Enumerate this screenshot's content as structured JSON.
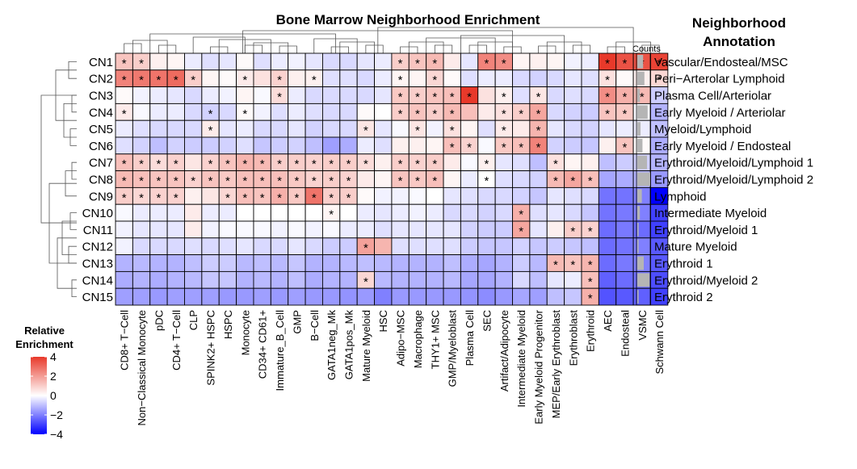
{
  "chart_data": {
    "type": "heatmap",
    "title": "Bone Marrow Neighborhood Enrichment",
    "annotation_title": [
      "Neighborhood",
      "Annotation"
    ],
    "counts_label": "Counts",
    "legend": {
      "title": [
        "Relative",
        "Enrichment"
      ],
      "ticks": [
        "4",
        "2",
        "0",
        "−2",
        "−4"
      ],
      "range": [
        -4,
        4
      ],
      "colors": {
        "low": "#0000ff",
        "mid": "#ffffff",
        "high": "#e8392a"
      }
    },
    "rows": [
      "CN1",
      "CN2",
      "CN3",
      "CN4",
      "CN5",
      "CN6",
      "CN7",
      "CN8",
      "CN9",
      "CN10",
      "CN11",
      "CN12",
      "CN13",
      "CN14",
      "CN15"
    ],
    "annotations": [
      "Vascular/Endosteal/MSC",
      "Peri−Arterolar Lymphoid",
      "Plasma Cell/Arteriolar",
      "Early Myeloid / Arteriolar",
      "Myeloid/Lymphoid",
      "Early Myeloid / Endosteal",
      "Erythroid/Myeloid/Lymphoid 1",
      "Erythroid/Myeloid/Lymphoid 2",
      "Lymphoid",
      "Intermediate Myeloid",
      "Erythroid/Myeloid 1",
      "Mature Myeloid",
      "Erythroid 1",
      "Erythroid/Myeloid 2",
      "Erythroid 2"
    ],
    "counts": [
      0.45,
      0.55,
      0.2,
      0.8,
      0.25,
      0.4,
      0.75,
      1.0,
      0.35,
      0.2,
      0.1,
      0.1,
      0.5,
      0.95,
      0.1
    ],
    "columns": [
      "CD8+ T−Cell",
      "Non−Classical Monocyte",
      "pDC",
      "CD4+ T−Cell",
      "CLP",
      "SPINK2+ HSPC",
      "HSPC",
      "Monocyte",
      "CD34+ CD61+",
      "Immature_B_Cell",
      "GMP",
      "B−Cell",
      "GATA1neg_Mk",
      "GATA1pos_Mk",
      "Mature Myeloid",
      "HSC",
      "Adipo−MSC",
      "Macrophage",
      "THY1+ MSC",
      "GMP/Myeloblast",
      "Plasma Cell",
      "SEC",
      "Artifact/Adipocyte",
      "Intermediate Myeloid",
      "Early Myeloid Progenitor",
      "MEP/Early Erythroblast",
      "Erythroblast",
      "Erythroid",
      "AEC",
      "Endosteal",
      "VSMC",
      "Schwann Cell"
    ],
    "values": [
      [
        1.2,
        1.0,
        0.3,
        0.2,
        -0.3,
        -0.5,
        -0.4,
        0.1,
        -0.5,
        -0.3,
        -0.2,
        -0.4,
        -0.6,
        -0.6,
        -0.4,
        -0.3,
        1.0,
        1.2,
        1.4,
        0.4,
        -0.4,
        2.5,
        2.3,
        0.2,
        0.3,
        0.2,
        -0.2,
        -0.3,
        4.0,
        3.5,
        3.5,
        3.8
      ],
      [
        2.5,
        2.7,
        2.8,
        3.0,
        1.0,
        0.2,
        0.1,
        0.4,
        0.6,
        0.9,
        0.3,
        0.3,
        -0.5,
        -0.5,
        -0.6,
        -0.3,
        0.2,
        0.2,
        0.8,
        0.1,
        -0.5,
        -0.3,
        -0.3,
        -0.6,
        -0.7,
        -0.6,
        -0.4,
        -0.5,
        0.6,
        0.1,
        0.3,
        0.8
      ],
      [
        0.1,
        -0.2,
        -0.3,
        -0.4,
        -0.6,
        -0.3,
        -0.2,
        0.2,
        -0.1,
        0.7,
        -0.3,
        -0.6,
        -0.6,
        -0.6,
        -0.6,
        -0.4,
        1.1,
        1.0,
        1.2,
        1.3,
        4.0,
        0.6,
        0.3,
        -0.5,
        0.5,
        -0.6,
        -0.5,
        -0.6,
        2.3,
        1.6,
        1.4,
        -0.8
      ],
      [
        0.4,
        -0.1,
        -0.3,
        -0.3,
        -0.6,
        -0.7,
        -0.6,
        0.1,
        -0.2,
        -0.5,
        -0.3,
        -0.5,
        -0.6,
        -0.6,
        0.1,
        0.0,
        1.0,
        1.2,
        1.0,
        1.4,
        1.3,
        0.4,
        0.6,
        1.0,
        1.8,
        -0.6,
        -0.7,
        -0.8,
        1.2,
        1.1,
        -0.1,
        -1.2
      ],
      [
        -0.3,
        -0.5,
        -0.6,
        -0.6,
        -0.6,
        0.4,
        -0.4,
        -0.3,
        -0.6,
        -0.6,
        -0.4,
        -0.7,
        -0.6,
        -0.6,
        0.5,
        -0.4,
        -0.1,
        0.5,
        -0.2,
        0.6,
        0.2,
        -0.5,
        0.4,
        0.4,
        1.5,
        -0.4,
        -0.6,
        -0.7,
        -0.4,
        -0.3,
        -0.3,
        -1.0
      ],
      [
        -0.5,
        -0.7,
        -1.0,
        -0.7,
        -0.8,
        -0.8,
        -0.7,
        -0.5,
        -0.9,
        -0.8,
        -0.7,
        -1.0,
        -1.5,
        -1.3,
        -0.3,
        -0.5,
        0.3,
        0.3,
        0.2,
        1.3,
        0.9,
        -0.1,
        1.1,
        1.3,
        2.5,
        -0.7,
        -0.8,
        -0.9,
        0.3,
        1.2,
        0.1,
        -1.3
      ],
      [
        1.3,
        1.0,
        0.7,
        0.9,
        0.5,
        0.9,
        1.2,
        1.5,
        1.4,
        1.0,
        1.0,
        0.9,
        1.0,
        1.0,
        0.7,
        0.3,
        1.0,
        0.9,
        1.0,
        0.4,
        -0.1,
        0.3,
        -0.4,
        -0.5,
        -1.0,
        0.6,
        0.2,
        0.3,
        -1.0,
        -0.8,
        -0.7,
        -1.2
      ],
      [
        1.4,
        1.3,
        1.2,
        1.2,
        0.9,
        1.2,
        1.1,
        1.3,
        1.3,
        1.3,
        1.1,
        0.9,
        1.0,
        0.9,
        0.4,
        0.2,
        1.2,
        1.1,
        1.3,
        0.2,
        -0.3,
        0.0,
        -0.5,
        -0.6,
        -0.7,
        1.4,
        1.8,
        1.3,
        -1.4,
        -1.3,
        -1.2,
        -1.6
      ],
      [
        1.0,
        0.8,
        0.9,
        0.9,
        0.3,
        0.5,
        0.8,
        1.3,
        1.2,
        1.6,
        1.1,
        2.8,
        1.0,
        1.0,
        0.1,
        -0.2,
        -0.2,
        -0.1,
        0.0,
        -0.4,
        -0.5,
        -0.6,
        -0.6,
        -0.7,
        -0.9,
        -0.4,
        -0.5,
        -0.6,
        -2.2,
        -2.2,
        -2.0,
        -4.0
      ],
      [
        -0.1,
        -0.3,
        -0.3,
        -0.3,
        0.4,
        -0.3,
        -0.3,
        0.0,
        0.0,
        0.0,
        0.0,
        0.0,
        0.2,
        0.0,
        -0.3,
        -0.4,
        -0.3,
        -0.2,
        -0.3,
        -0.6,
        -0.6,
        -0.7,
        -0.6,
        1.6,
        -0.5,
        -0.4,
        -0.6,
        -0.9,
        -2.2,
        -2.1,
        -2.0,
        -3.0
      ],
      [
        -0.2,
        -0.4,
        -0.4,
        -0.4,
        0.4,
        -0.2,
        -0.1,
        -0.1,
        -0.1,
        -0.2,
        -0.1,
        -0.2,
        -0.1,
        -0.3,
        -0.3,
        -0.5,
        -0.4,
        -0.4,
        -0.4,
        -0.4,
        -0.7,
        -0.8,
        -0.8,
        1.8,
        -0.4,
        0.3,
        1.0,
        0.9,
        -2.3,
        -2.1,
        -2.3,
        -3.0
      ],
      [
        -0.2,
        -0.6,
        -0.6,
        -0.6,
        -0.5,
        -0.6,
        -0.5,
        -0.4,
        -0.6,
        -0.6,
        -0.4,
        -0.6,
        -0.8,
        -0.8,
        1.9,
        1.5,
        -0.5,
        -0.5,
        -0.5,
        -0.5,
        -0.8,
        -0.9,
        -0.9,
        -0.7,
        -0.9,
        -0.8,
        -0.9,
        -1.0,
        -2.3,
        -2.2,
        -2.0,
        -2.6
      ],
      [
        -1.2,
        -1.1,
        -1.2,
        -1.2,
        -1.0,
        -0.8,
        -0.8,
        -1.1,
        -1.0,
        -1.1,
        -0.9,
        -1.2,
        -1.2,
        -1.1,
        -1.0,
        -1.1,
        -1.2,
        -1.2,
        -1.2,
        -1.0,
        -1.3,
        -1.4,
        -1.2,
        -0.8,
        -1.1,
        1.4,
        1.2,
        1.5,
        -2.3,
        -2.1,
        -2.0,
        -2.6
      ],
      [
        -1.3,
        -1.2,
        -1.3,
        -1.2,
        -1.1,
        -0.9,
        -0.9,
        -1.2,
        -1.1,
        -1.2,
        -1.0,
        -1.3,
        -1.2,
        -1.2,
        0.8,
        -1.1,
        -1.2,
        -1.2,
        -1.2,
        -1.1,
        -1.4,
        -1.4,
        -1.2,
        -0.6,
        -1.0,
        -0.4,
        -0.3,
        1.3,
        -2.5,
        -2.3,
        -2.2,
        -2.8
      ],
      [
        -1.5,
        -1.5,
        -1.6,
        -1.5,
        -1.5,
        -1.5,
        -1.6,
        -1.6,
        -1.5,
        -1.6,
        -1.5,
        -1.6,
        -1.6,
        -1.7,
        -1.6,
        -2.0,
        -1.6,
        -1.6,
        -1.6,
        -1.6,
        -1.7,
        -1.8,
        -1.6,
        -1.4,
        -1.5,
        -1.0,
        -0.9,
        1.6,
        -2.7,
        -2.6,
        -2.5,
        -3.0
      ]
    ],
    "stars": [
      [
        0,
        1,
        16,
        17,
        18,
        21,
        22,
        28,
        29,
        30,
        31
      ],
      [
        0,
        1,
        2,
        3,
        4,
        7,
        9,
        11,
        16,
        18,
        28,
        30,
        31
      ],
      [
        9,
        16,
        17,
        18,
        19,
        20,
        22,
        24,
        28,
        29,
        30
      ],
      [
        0,
        5,
        7,
        16,
        17,
        18,
        19,
        22,
        23,
        24,
        28,
        29
      ],
      [
        5,
        14,
        17,
        19,
        22,
        24
      ],
      [
        19,
        20,
        22,
        23,
        24,
        29
      ],
      [
        0,
        1,
        2,
        3,
        5,
        6,
        7,
        8,
        9,
        10,
        11,
        12,
        13,
        14,
        16,
        17,
        18,
        21,
        25
      ],
      [
        0,
        1,
        2,
        3,
        4,
        5,
        6,
        7,
        8,
        9,
        10,
        11,
        12,
        13,
        16,
        17,
        18,
        21,
        25,
        26,
        27
      ],
      [
        0,
        1,
        2,
        3,
        6,
        7,
        8,
        9,
        10,
        11,
        12,
        13
      ],
      [
        12,
        23
      ],
      [
        23,
        26,
        27
      ],
      [
        14
      ],
      [
        25,
        26,
        27
      ],
      [
        14,
        27
      ],
      [
        27
      ]
    ]
  }
}
